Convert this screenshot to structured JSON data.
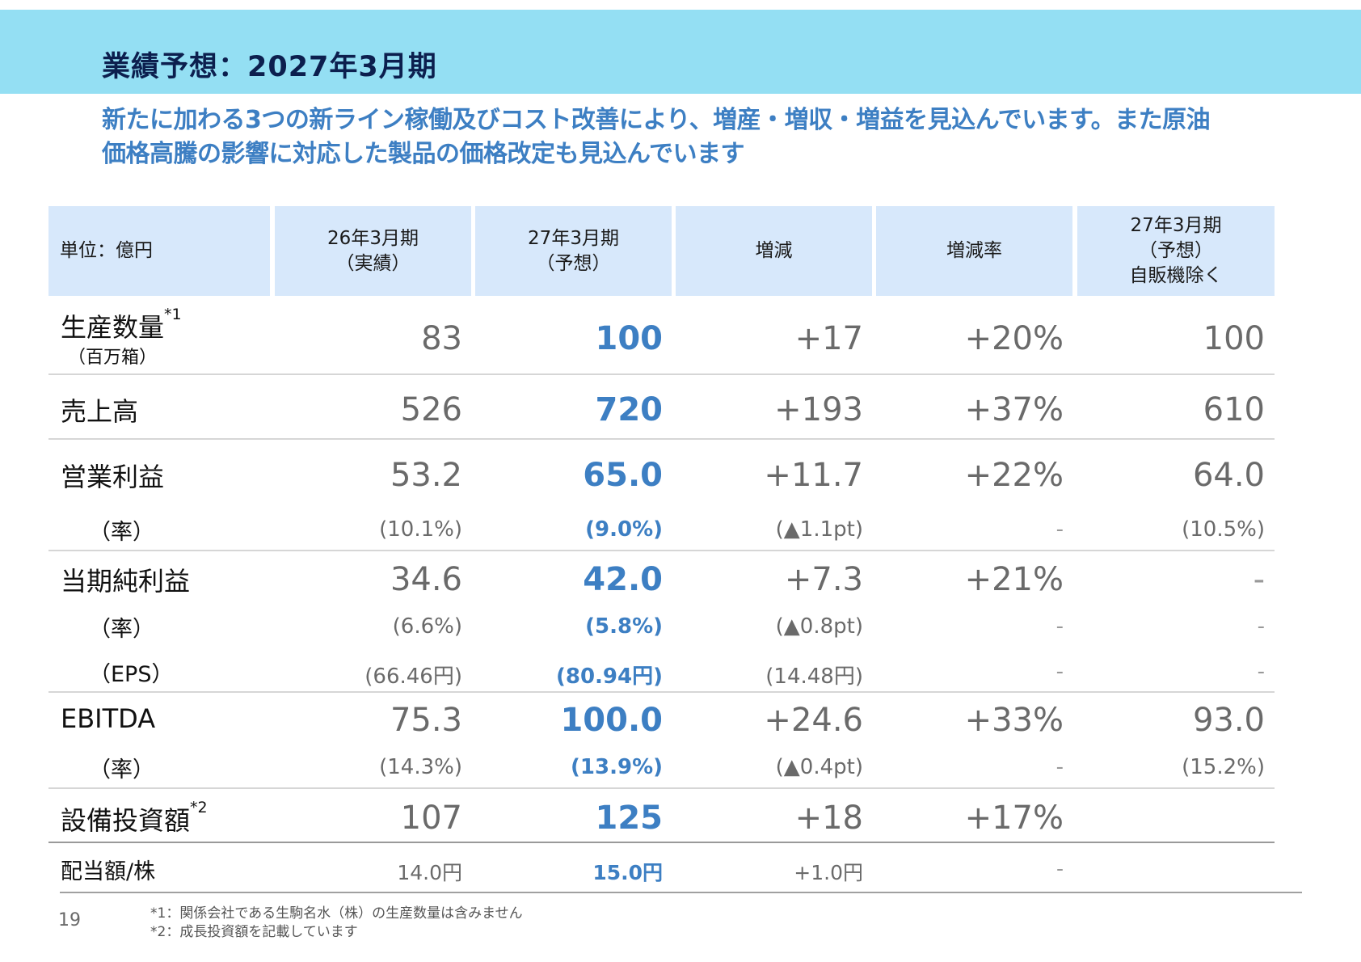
{
  "header": {
    "title": "業績予想：2027年3月期"
  },
  "subtitle": {
    "line1": "新たに加わる3つの新ライン稼働及びコスト改善により、増産・増収・増益を見込んでいます。また原油",
    "line2": "価格高騰の影響に対応した製品の価格改定も見込んでいます"
  },
  "table": {
    "header": {
      "unit": "単位：億円",
      "col1": [
        "26年3月期",
        "（実績）"
      ],
      "col2": [
        "27年3月期",
        "（予想）"
      ],
      "col3": "増減",
      "col4": "増減率",
      "col5": [
        "27年3月期",
        "（予想）",
        "自販機除く"
      ]
    },
    "rows": {
      "production": {
        "label": "生産数量",
        "mark": "*1",
        "unit_note": "（百万箱）",
        "values": [
          "83",
          "100",
          "+17",
          "+20%",
          "100"
        ]
      },
      "sales": {
        "label": "売上高",
        "values": [
          "526",
          "720",
          "+193",
          "+37%",
          "610"
        ]
      },
      "operating_profit": {
        "label": "営業利益",
        "values": [
          "53.2",
          "65.0",
          "+11.7",
          "+22%",
          "64.0"
        ],
        "rate_label": "（率）",
        "rate_values": [
          "(10.1%)",
          "(9.0%)",
          "(▲1.1pt)",
          "-",
          "(10.5%)"
        ]
      },
      "net_income": {
        "label": "当期純利益",
        "values": [
          "34.6",
          "42.0",
          "+7.3",
          "+21%",
          "-"
        ],
        "rate_label": "（率）",
        "rate_values": [
          "(6.6%)",
          "(5.8%)",
          "(▲0.8pt)",
          "-",
          "-"
        ],
        "eps_label": "（EPS）",
        "eps_values": [
          "(66.46円)",
          "(80.94円)",
          "(14.48円)",
          "-",
          "-"
        ]
      },
      "ebitda": {
        "label": "EBITDA",
        "values": [
          "75.3",
          "100.0",
          "+24.6",
          "+33%",
          "93.0"
        ],
        "rate_label": "（率）",
        "rate_values": [
          "(14.3%)",
          "(13.9%)",
          "(▲0.4pt)",
          "-",
          "(15.2%)"
        ]
      },
      "capex": {
        "label": "設備投資額",
        "mark": "*2",
        "values": [
          "107",
          "125",
          "+18",
          "+17%",
          ""
        ]
      },
      "dividend": {
        "label": "配当額/株",
        "values": [
          "14.0円",
          "15.0円",
          "+1.0円",
          "-",
          ""
        ]
      }
    }
  },
  "footer": {
    "page": "19",
    "note1": "*1：関係会社である生駒名水（株）の生産数量は含みません",
    "note2": "*2：成長投資額を記載しています"
  },
  "colors": {
    "header_bg": "#94dff3",
    "title": "#0c1f4e",
    "accent_blue": "#3d7fc3",
    "table_header_bg": "#d7e8fb"
  }
}
